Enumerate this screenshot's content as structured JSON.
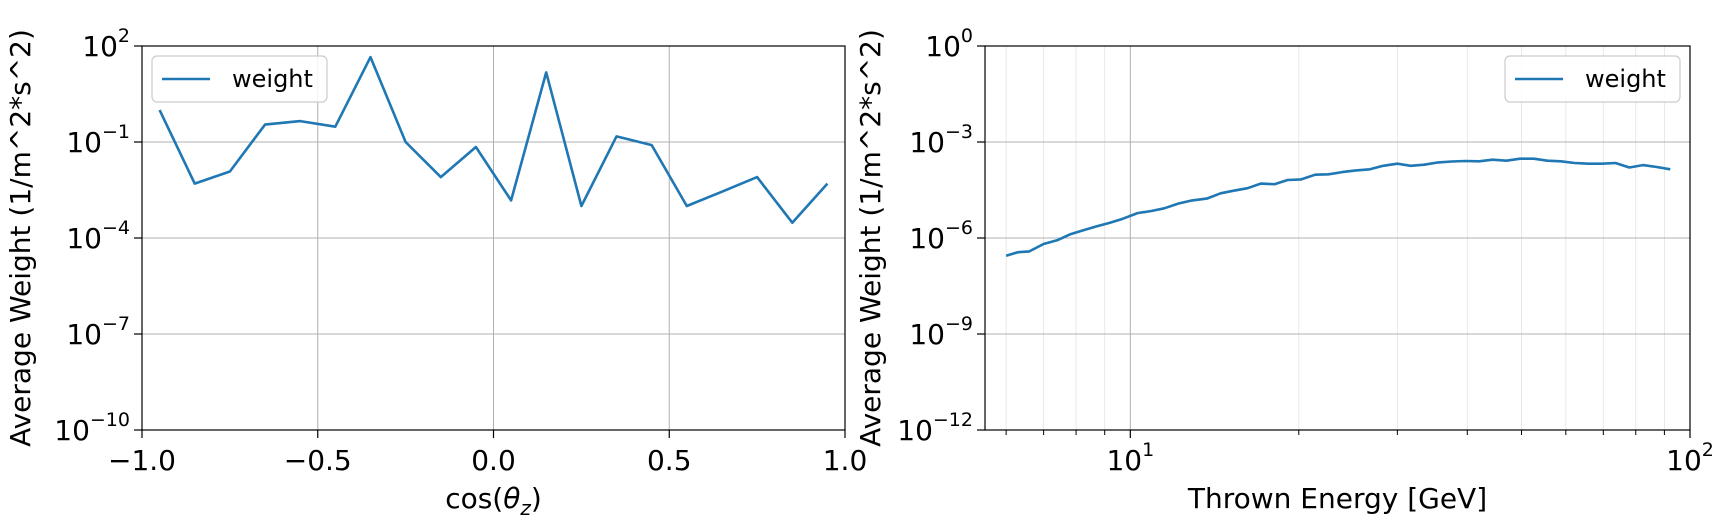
{
  "chart_data": [
    {
      "type": "line",
      "xlabel": "cos(θz)",
      "ylabel": "Average Weight (1/m^2*s^2)",
      "xscale": "linear",
      "yscale": "log",
      "xlim": [
        -1.0,
        1.0
      ],
      "ylim": [
        1e-10,
        100
      ],
      "xticks": [
        {
          "value": -1.0,
          "label": "−1.0"
        },
        {
          "value": -0.5,
          "label": "−0.5"
        },
        {
          "value": 0.0,
          "label": "0.0"
        },
        {
          "value": 0.5,
          "label": "0.5"
        },
        {
          "value": 1.0,
          "label": "1.0"
        }
      ],
      "yticks": [
        {
          "value": 1e-10,
          "base": "10",
          "exp": "−10"
        },
        {
          "value": 1e-07,
          "base": "10",
          "exp": "−7"
        },
        {
          "value": 0.0001,
          "base": "10",
          "exp": "−4"
        },
        {
          "value": 0.1,
          "base": "10",
          "exp": "−1"
        },
        {
          "value": 100,
          "base": "10",
          "exp": "2"
        }
      ],
      "grid": true,
      "legend_position": "upper-left",
      "series": [
        {
          "name": "weight",
          "color": "#1f77b4",
          "x": [
            -0.95,
            -0.85,
            -0.75,
            -0.65,
            -0.55,
            -0.45,
            -0.35,
            -0.25,
            -0.15,
            -0.05,
            0.05,
            0.15,
            0.25,
            0.35,
            0.45,
            0.55,
            0.65,
            0.75,
            0.85,
            0.95
          ],
          "y": [
            1.0,
            0.005,
            0.012,
            0.35,
            0.45,
            0.3,
            45,
            0.1,
            0.008,
            0.07,
            0.0015,
            15,
            0.001,
            0.15,
            0.08,
            0.001,
            0.0028,
            0.008,
            0.0003,
            0.005
          ]
        }
      ]
    },
    {
      "type": "line",
      "xlabel": "Thrown Energy [GeV]",
      "ylabel": "Average Weight (1/m^2*s^2)",
      "xscale": "log",
      "yscale": "log",
      "xlim": [
        5.5,
        100
      ],
      "ylim": [
        1e-12,
        1
      ],
      "xticks": [
        {
          "value": 10,
          "base": "10",
          "exp": "1"
        },
        {
          "value": 100,
          "base": "10",
          "exp": "2"
        }
      ],
      "yticks": [
        {
          "value": 1e-12,
          "base": "10",
          "exp": "−12"
        },
        {
          "value": 1e-09,
          "base": "10",
          "exp": "−9"
        },
        {
          "value": 1e-06,
          "base": "10",
          "exp": "−6"
        },
        {
          "value": 0.001,
          "base": "10",
          "exp": "−3"
        },
        {
          "value": 1,
          "base": "10",
          "exp": "0"
        }
      ],
      "grid": true,
      "minor_grid": true,
      "legend_position": "upper-right",
      "series": [
        {
          "name": "weight",
          "color": "#1f77b4",
          "x": [
            6.0,
            6.3,
            6.6,
            7.0,
            7.4,
            7.8,
            8.2,
            8.7,
            9.2,
            9.7,
            10.3,
            10.9,
            11.5,
            12.2,
            12.9,
            13.7,
            14.5,
            15.3,
            16.2,
            17.1,
            18.1,
            19.1,
            20.2,
            21.4,
            22.6,
            23.9,
            25.3,
            26.8,
            28.3,
            30.0,
            31.7,
            33.5,
            35.5,
            37.5,
            39.7,
            42.0,
            44.4,
            47.0,
            49.7,
            52.6,
            55.6,
            58.8,
            62.2,
            65.8,
            69.6,
            73.6,
            77.9,
            82.4,
            87.2,
            92.2
          ],
          "y": [
            2.8e-07,
            3.6e-07,
            3.8e-07,
            6.5e-07,
            8.5e-07,
            1.3e-06,
            1.7e-06,
            2.3e-06,
            3e-06,
            4e-06,
            6e-06,
            7e-06,
            8.5e-06,
            1.2e-05,
            1.5e-05,
            1.7e-05,
            2.5e-05,
            3e-05,
            3.6e-05,
            5e-05,
            4.8e-05,
            6.5e-05,
            6.8e-05,
            9.5e-05,
            9.8e-05,
            0.000115,
            0.00013,
            0.00014,
            0.00018,
            0.00021,
            0.00018,
            0.000195,
            0.00023,
            0.000245,
            0.000255,
            0.00025,
            0.00028,
            0.00026,
            0.0003,
            0.0003,
            0.00026,
            0.00025,
            0.00022,
            0.00021,
            0.00021,
            0.00022,
            0.00016,
            0.00019,
            0.000165,
            0.00014
          ]
        }
      ]
    }
  ]
}
